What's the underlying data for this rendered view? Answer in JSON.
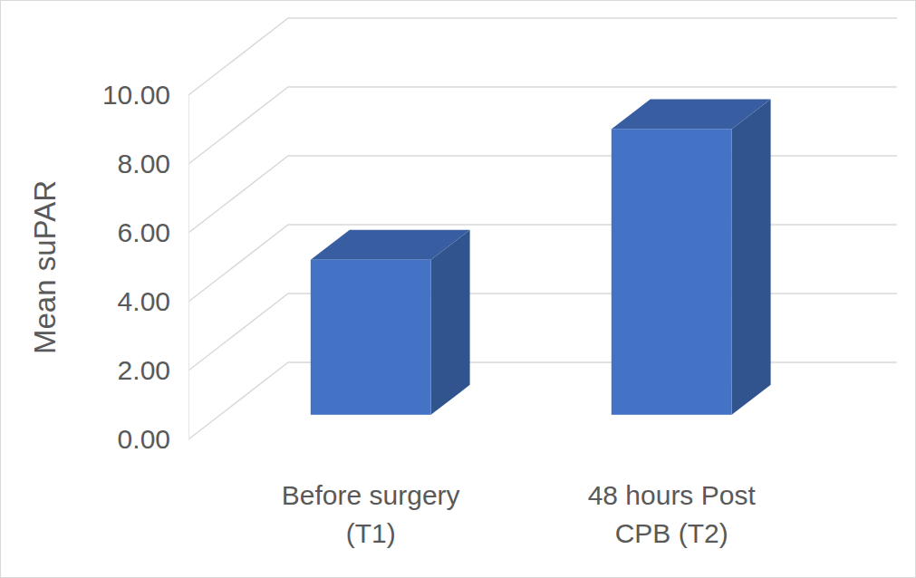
{
  "chart_data": {
    "type": "bar",
    "y_label": "Mean suPAR",
    "categories": [
      "Before surgery (T1)",
      "48 hours Post CPB (T2)"
    ],
    "values": [
      4.5,
      8.3
    ],
    "color": "#4472c4",
    "ylim": [
      0,
      10
    ],
    "yticks": [
      {
        "value": 0,
        "label": "0.00"
      },
      {
        "value": 2,
        "label": "2.00"
      },
      {
        "value": 4,
        "label": "4.00"
      },
      {
        "value": 6,
        "label": "6.00"
      },
      {
        "value": 8,
        "label": "8.00"
      },
      {
        "value": 10,
        "label": "10.00"
      }
    ],
    "grid": true
  }
}
